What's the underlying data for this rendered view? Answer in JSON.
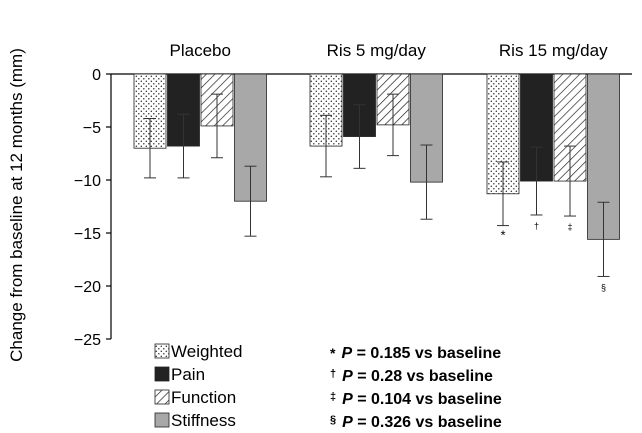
{
  "chart_data": {
    "type": "bar",
    "ylabel": "Change from baseline at 12 months (mm)",
    "ylim": [
      -25,
      0
    ],
    "yticks": [
      0,
      -5,
      -10,
      -15,
      -20,
      -25
    ],
    "categories": [
      "Placebo",
      "Ris 5 mg/day",
      "Ris 15 mg/day"
    ],
    "series": [
      {
        "name": "Weighted",
        "pattern": "dots",
        "values": [
          -7.0,
          -6.8,
          -11.3
        ],
        "errors": [
          2.8,
          2.9,
          3.0
        ]
      },
      {
        "name": "Pain",
        "pattern": "solid",
        "color": "#222222",
        "values": [
          -6.8,
          -5.9,
          -10.1
        ],
        "errors": [
          3.0,
          3.0,
          3.2
        ]
      },
      {
        "name": "Function",
        "pattern": "hatch",
        "values": [
          -4.9,
          -4.8,
          -10.1
        ],
        "errors": [
          3.0,
          2.9,
          3.3
        ]
      },
      {
        "name": "Stiffness",
        "pattern": "solid",
        "color": "#a8a8a8",
        "values": [
          -12.0,
          -10.2,
          -15.6
        ],
        "errors": [
          3.3,
          3.5,
          3.5
        ]
      }
    ],
    "bar_marks": [
      {
        "category": 2,
        "series": 0,
        "symbol": "*"
      },
      {
        "category": 2,
        "series": 1,
        "symbol": "†"
      },
      {
        "category": 2,
        "series": 2,
        "symbol": "‡"
      },
      {
        "category": 2,
        "series": 3,
        "symbol": "§"
      }
    ],
    "legend_placement": "bottom-left",
    "footnotes": [
      {
        "symbol": "*",
        "p_label": "P",
        "text": " = 0.185 vs baseline"
      },
      {
        "symbol": "†",
        "p_label": "P",
        "text": " = 0.28 vs baseline"
      },
      {
        "symbol": "‡",
        "p_label": "P",
        "text": " = 0.104 vs baseline"
      },
      {
        "symbol": "§",
        "p_label": "P",
        "text": " = 0.326 vs baseline"
      }
    ],
    "grid": false
  }
}
